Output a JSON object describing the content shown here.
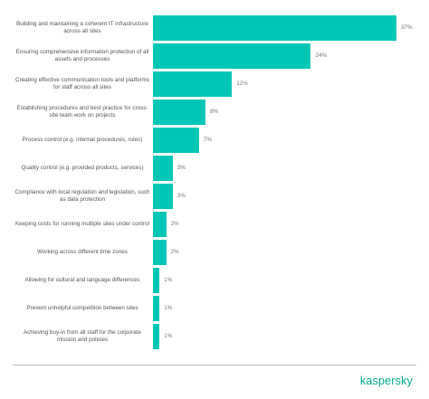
{
  "chart_data": {
    "type": "bar",
    "orientation": "horizontal",
    "color": "#00c7b5",
    "categories": [
      "Building and maintaining a coherent IT infrastructure across all sites",
      "Ensuring comprehensive information protection of all assets and processes",
      "Creating effective communication tools and platforms for staff across all sites",
      "Establishing procedures and best practice for cross-site team work on projects",
      "Process control (e.g. internal procedures, rules)",
      "Quality control (e.g. provided products, services)",
      "Compliance with local regulation and legislation, such as data protection",
      "Keeping costs for running multiple sites under control",
      "Working across different time zones",
      "Allowing for cultural and language differences",
      "Prevent unhelpful competition between sites",
      "Achieving buy-in from all staff for the corporate mission and policies"
    ],
    "values": [
      37,
      24,
      12,
      8,
      7,
      3,
      3,
      2,
      2,
      1,
      1,
      1
    ],
    "value_labels": [
      "37%",
      "24%",
      "12%",
      "8%",
      "7%",
      "3%",
      "3%",
      "2%",
      "2%",
      "1%",
      "1%",
      "1%"
    ]
  },
  "logo": "kaspersky"
}
